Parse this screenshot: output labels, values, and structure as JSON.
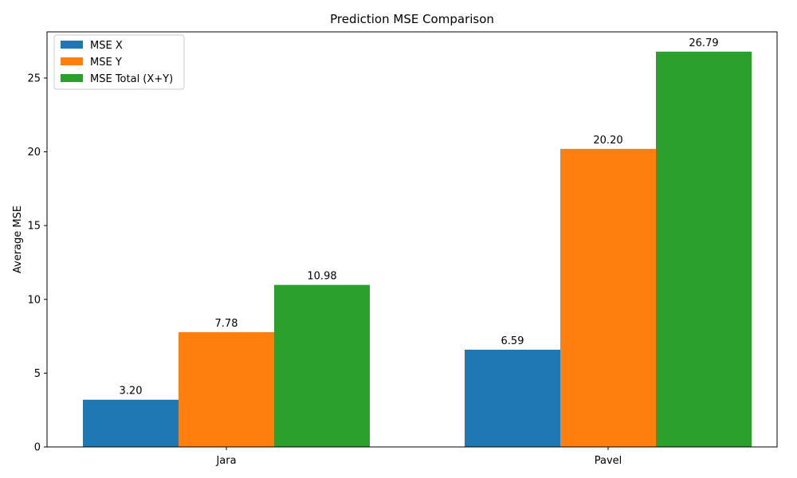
{
  "chart_data": {
    "type": "bar",
    "title": "Prediction MSE Comparison",
    "xlabel": "",
    "ylabel": "Average MSE",
    "categories": [
      "Jara",
      "Pavel"
    ],
    "series": [
      {
        "name": "MSE X",
        "color": "#1f77b4",
        "values": [
          3.2,
          6.59
        ],
        "labels": [
          "3.20",
          "6.59"
        ]
      },
      {
        "name": "MSE Y",
        "color": "#ff7f0e",
        "values": [
          7.78,
          20.2
        ],
        "labels": [
          "7.78",
          "20.20"
        ]
      },
      {
        "name": "MSE Total (X+Y)",
        "color": "#2ca02c",
        "values": [
          10.98,
          26.79
        ],
        "labels": [
          "10.98",
          "26.79"
        ]
      }
    ],
    "ylim": [
      0,
      28.1295
    ],
    "yticks": [
      0,
      5,
      10,
      15,
      20,
      25
    ],
    "grid": false,
    "legend_position": "upper left"
  }
}
